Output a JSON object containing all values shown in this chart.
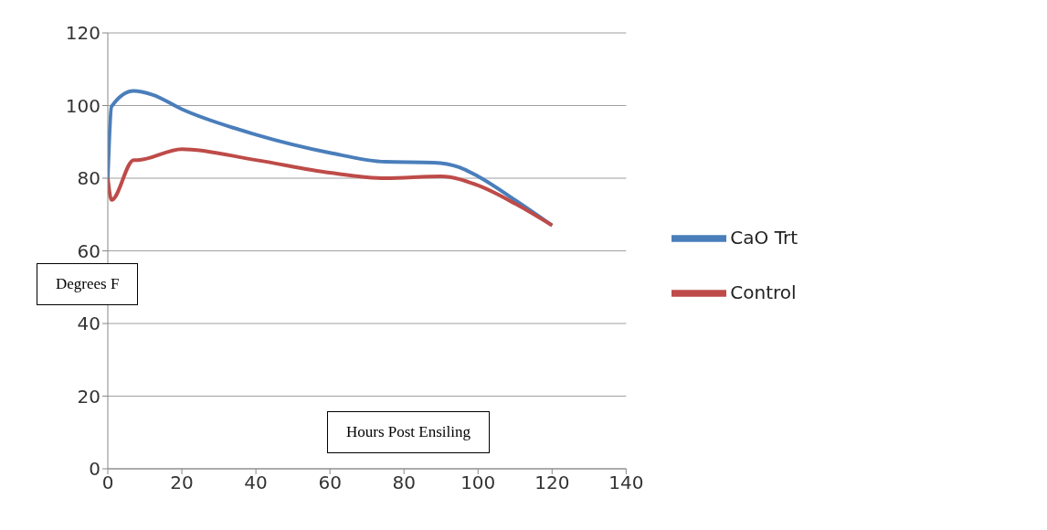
{
  "chart_data": {
    "type": "line",
    "xlabel": "Hours Post Ensiling",
    "ylabel": "Degrees F",
    "xlim": [
      0,
      140
    ],
    "xticks": [
      0,
      20,
      40,
      60,
      80,
      100,
      120,
      140
    ],
    "ylim": [
      0,
      120
    ],
    "yticks": [
      0,
      20,
      40,
      60,
      80,
      100,
      120
    ],
    "grid": "y",
    "legend": "right",
    "marker": "none",
    "line_style": "solid",
    "series": [
      {
        "name": "CaO Trt",
        "color": "#4a7ebb",
        "x": [
          0,
          1,
          7,
          12,
          20,
          40,
          60,
          75,
          88,
          95,
          100,
          110,
          120
        ],
        "values": [
          80,
          99.7,
          104,
          103,
          99,
          92,
          87,
          84.5,
          84.3,
          83,
          80.5,
          74,
          67
        ]
      },
      {
        "name": "Control",
        "color": "#be4b48",
        "x": [
          0,
          1,
          7,
          8,
          20,
          40,
          60,
          75,
          90,
          100,
          110,
          120
        ],
        "values": [
          80,
          74,
          85,
          85,
          88,
          85,
          81.5,
          80,
          80.5,
          78,
          73,
          67
        ]
      }
    ]
  }
}
